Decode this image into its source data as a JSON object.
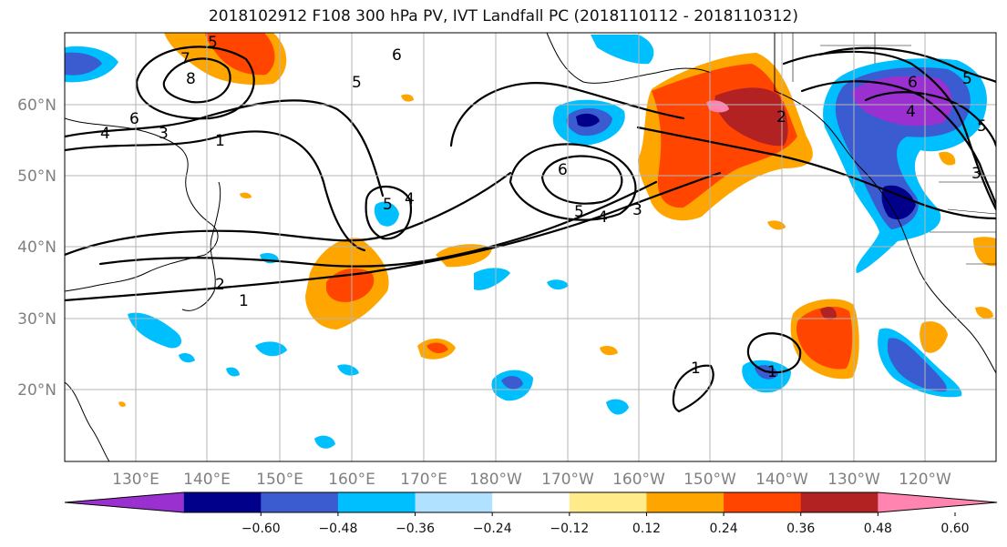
{
  "title": "2018102912 F108 300 hPa PV, IVT Landfall PC (2018110112 - 2018110312)",
  "map": {
    "lon_labels": [
      "130°E",
      "140°E",
      "150°E",
      "160°E",
      "170°E",
      "180°W",
      "170°W",
      "160°W",
      "150°W",
      "140°W",
      "130°W",
      "120°W"
    ],
    "lat_labels": [
      "60°N",
      "50°N",
      "40°N",
      "30°N",
      "20°N"
    ],
    "contour_labels": [
      "5",
      "7",
      "8",
      "6",
      "3",
      "4",
      "1",
      "6",
      "5",
      "5",
      "4",
      "6",
      "5",
      "4",
      "3",
      "2",
      "2",
      "1",
      "1",
      "1",
      "6",
      "4",
      "5",
      "5",
      "3"
    ],
    "colors": {
      "land_outline": "#000000",
      "gridline": "#b5b5b5",
      "contour": "#000000"
    }
  },
  "colorbar": {
    "ticks": [
      "−0.60",
      "−0.48",
      "−0.36",
      "−0.24",
      "−0.12",
      "0.12",
      "0.24",
      "0.36",
      "0.48",
      "0.60"
    ],
    "colors": [
      "#9b30d0",
      "#00008b",
      "#3b5bd0",
      "#00bfff",
      "#b0e2ff",
      "#ffffff",
      "#ffeb8a",
      "#ffa500",
      "#ff4500",
      "#b22222",
      "#ff85b0"
    ]
  }
}
